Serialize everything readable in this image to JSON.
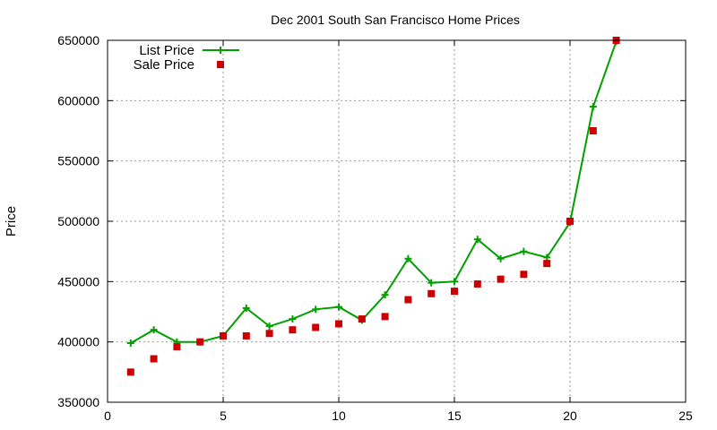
{
  "chart_data": {
    "type": "line",
    "title": "Dec 2001 South San Francisco Home Prices",
    "xlabel": "",
    "ylabel": "Price",
    "xlim": [
      0,
      25
    ],
    "ylim": [
      350000,
      650000
    ],
    "x_ticks": [
      0,
      5,
      10,
      15,
      20,
      25
    ],
    "y_ticks": [
      350000,
      400000,
      450000,
      500000,
      550000,
      600000,
      650000
    ],
    "grid": true,
    "legend_position": "top-left",
    "series": [
      {
        "name": "List Price",
        "style": "line-with-plus-markers",
        "color": "#00a000",
        "x": [
          1,
          2,
          3,
          4,
          5,
          6,
          7,
          8,
          9,
          10,
          11,
          12,
          13,
          14,
          15,
          16,
          17,
          18,
          19,
          20,
          21,
          22
        ],
        "values": [
          399000,
          410000,
          399950,
          399950,
          405000,
          428000,
          413000,
          419000,
          427000,
          429000,
          418000,
          439000,
          469000,
          449000,
          450000,
          485000,
          469000,
          475000,
          470000,
          499000,
          595000,
          649000
        ]
      },
      {
        "name": "Sale Price",
        "style": "square-markers",
        "color": "#cc0000",
        "x": [
          1,
          2,
          3,
          4,
          5,
          6,
          7,
          8,
          9,
          10,
          11,
          12,
          13,
          14,
          15,
          16,
          17,
          18,
          19,
          20,
          21,
          22
        ],
        "values": [
          375000,
          386000,
          396000,
          400000,
          405000,
          405000,
          407000,
          410000,
          412000,
          415000,
          419000,
          421000,
          435000,
          440000,
          442000,
          448000,
          452000,
          456000,
          465000,
          500000,
          575000,
          650000
        ]
      }
    ]
  }
}
